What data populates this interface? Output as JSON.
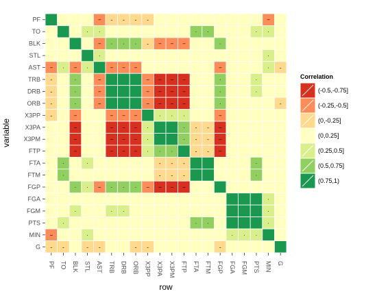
{
  "chart_data": {
    "type": "heatmap",
    "title": "",
    "xlabel": "row",
    "ylabel": "variable",
    "x_categories": [
      "PF",
      "TO",
      "BLK",
      "STL",
      "AST",
      "TRB",
      "DRB",
      "ORB",
      "X3PP",
      "X3PA",
      "X3PM",
      "FTP",
      "FTA",
      "FTM",
      "FGP",
      "FGA",
      "FGM",
      "PTS",
      "MIN",
      "G"
    ],
    "y_categories": [
      "PF",
      "TO",
      "BLK",
      "STL",
      "AST",
      "TRB",
      "DRB",
      "ORB",
      "X3PP",
      "X3PA",
      "X3PM",
      "FTP",
      "FTA",
      "FTM",
      "FGP",
      "FGA",
      "FGM",
      "PTS",
      "MIN",
      "G"
    ],
    "legend": {
      "title": "Correlation",
      "position": "right",
      "bins": [
        {
          "label": "(-0.5,-0.75]",
          "color": "#d7301f"
        },
        {
          "label": "(-0.25,-0.5]",
          "color": "#fc8d59"
        },
        {
          "label": "(0,-0.25]",
          "color": "#fed98e"
        },
        {
          "label": "(0,0.25]",
          "color": "#ffffbf"
        },
        {
          "label": "(0.25,0.5]",
          "color": "#d9ef8b"
        },
        {
          "label": "(0.5,0.75]",
          "color": "#91cf60"
        },
        {
          "label": "(0.75,1)",
          "color": "#1a9850"
        }
      ]
    },
    "matrix": [
      [
        6,
        3,
        3,
        3,
        1,
        2,
        2,
        2,
        2,
        3,
        3,
        3,
        3,
        3,
        3,
        3,
        3,
        3,
        1,
        3
      ],
      [
        3,
        6,
        3,
        4,
        4,
        3,
        3,
        3,
        3,
        3,
        3,
        3,
        5,
        5,
        3,
        3,
        3,
        4,
        4,
        3
      ],
      [
        3,
        3,
        6,
        3,
        1,
        5,
        5,
        5,
        2,
        1,
        1,
        1,
        3,
        3,
        5,
        3,
        3,
        3,
        3,
        3
      ],
      [
        3,
        3,
        3,
        6,
        4,
        3,
        3,
        3,
        3,
        3,
        3,
        3,
        3,
        3,
        3,
        3,
        3,
        3,
        4,
        3
      ],
      [
        1,
        4,
        1,
        4,
        6,
        1,
        1,
        1,
        3,
        3,
        3,
        3,
        3,
        3,
        1,
        3,
        3,
        3,
        4,
        2
      ],
      [
        2,
        3,
        5,
        3,
        1,
        6,
        6,
        6,
        1,
        0,
        0,
        0,
        3,
        3,
        5,
        3,
        3,
        4,
        3,
        3
      ],
      [
        2,
        3,
        5,
        3,
        1,
        6,
        6,
        6,
        1,
        0,
        0,
        0,
        3,
        3,
        5,
        3,
        3,
        4,
        3,
        3
      ],
      [
        2,
        3,
        5,
        3,
        1,
        6,
        6,
        6,
        1,
        0,
        0,
        0,
        3,
        3,
        5,
        3,
        3,
        3,
        3,
        2
      ],
      [
        2,
        3,
        1,
        3,
        3,
        1,
        1,
        1,
        6,
        4,
        4,
        4,
        3,
        3,
        1,
        3,
        3,
        3,
        3,
        3
      ],
      [
        3,
        3,
        0,
        3,
        3,
        0,
        0,
        0,
        4,
        6,
        6,
        5,
        2,
        2,
        0,
        3,
        3,
        3,
        3,
        3
      ],
      [
        3,
        3,
        0,
        3,
        3,
        0,
        0,
        0,
        4,
        6,
        6,
        5,
        2,
        2,
        0,
        3,
        3,
        3,
        3,
        3
      ],
      [
        3,
        3,
        0,
        3,
        3,
        0,
        0,
        0,
        4,
        5,
        5,
        6,
        2,
        2,
        0,
        3,
        3,
        3,
        3,
        3
      ],
      [
        3,
        5,
        3,
        4,
        3,
        3,
        3,
        3,
        3,
        2,
        2,
        2,
        6,
        6,
        3,
        3,
        3,
        5,
        3,
        3
      ],
      [
        3,
        5,
        3,
        3,
        3,
        3,
        3,
        3,
        3,
        2,
        2,
        2,
        6,
        6,
        3,
        3,
        3,
        5,
        3,
        3
      ],
      [
        3,
        3,
        5,
        4,
        1,
        5,
        5,
        5,
        1,
        0,
        0,
        0,
        3,
        3,
        6,
        3,
        3,
        3,
        3,
        3
      ],
      [
        3,
        3,
        3,
        3,
        3,
        3,
        3,
        3,
        3,
        3,
        3,
        3,
        3,
        3,
        3,
        6,
        6,
        6,
        4,
        3
      ],
      [
        3,
        3,
        4,
        3,
        3,
        4,
        4,
        3,
        3,
        3,
        3,
        3,
        3,
        3,
        3,
        6,
        6,
        6,
        4,
        3
      ],
      [
        3,
        4,
        3,
        3,
        3,
        3,
        3,
        3,
        3,
        3,
        3,
        3,
        5,
        5,
        3,
        6,
        6,
        6,
        4,
        3
      ],
      [
        1,
        3,
        3,
        4,
        3,
        3,
        3,
        3,
        3,
        3,
        3,
        3,
        3,
        3,
        3,
        4,
        4,
        4,
        6,
        3
      ],
      [
        2,
        2,
        3,
        2,
        2,
        3,
        3,
        2,
        2,
        3,
        3,
        3,
        3,
        3,
        2,
        3,
        3,
        3,
        3,
        6
      ]
    ]
  }
}
